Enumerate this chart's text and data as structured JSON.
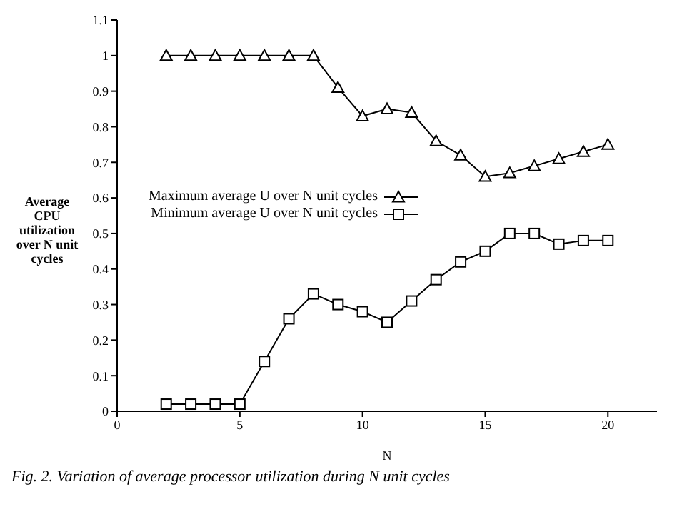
{
  "chart_data": {
    "type": "line",
    "xlabel": "N",
    "ylabel": "Average CPU utilization over N unit cycles",
    "x": [
      2,
      3,
      4,
      5,
      6,
      7,
      8,
      9,
      10,
      11,
      12,
      13,
      14,
      15,
      16,
      17,
      18,
      19,
      20
    ],
    "series": [
      {
        "name": "Maximum average U over N unit cycles",
        "color": "#000000",
        "marker": "triangle",
        "values": [
          1.0,
          1.0,
          1.0,
          1.0,
          1.0,
          1.0,
          1.0,
          0.91,
          0.83,
          0.85,
          0.84,
          0.76,
          0.72,
          0.66,
          0.67,
          0.69,
          0.71,
          0.73,
          0.75
        ]
      },
      {
        "name": "Minimum average U over N unit cycles",
        "color": "#000000",
        "marker": "square",
        "values": [
          0.02,
          0.02,
          0.02,
          0.02,
          0.14,
          0.26,
          0.33,
          0.3,
          0.28,
          0.25,
          0.31,
          0.37,
          0.42,
          0.45,
          0.5,
          0.5,
          0.47,
          0.48,
          0.48
        ]
      }
    ],
    "xlim": [
      0,
      22
    ],
    "xticks": [
      0,
      5,
      10,
      15,
      20
    ],
    "ylim": [
      0,
      1.1
    ],
    "yticks": [
      0,
      0.1,
      0.2,
      0.3,
      0.4,
      0.5,
      0.6,
      0.7,
      0.8,
      0.9,
      1,
      1.1
    ],
    "grid": false,
    "legend": "left",
    "line_style": "solid",
    "annotations": [
      "Fig. 2. Variation of average processor utilization during N unit cycles"
    ]
  }
}
